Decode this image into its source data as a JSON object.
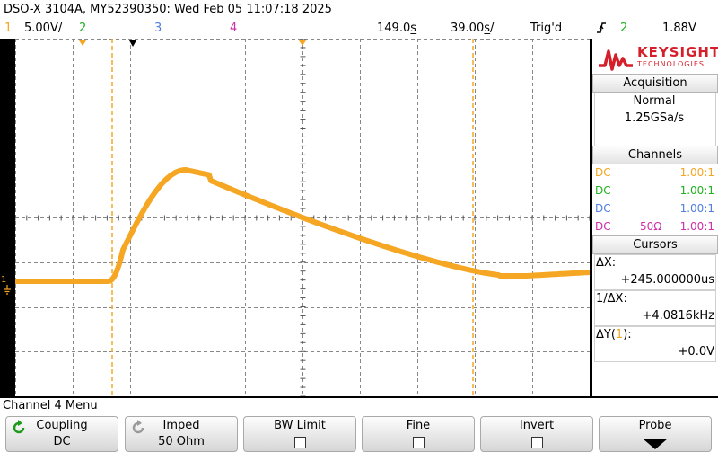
{
  "header": {
    "title": "DSO-X 3104A, MY52390350: Wed Feb 05 11:07:18 2025",
    "ch1_num": "1",
    "ch1_scale": "5.00V/",
    "ch2_num": "2",
    "ch3_num": "3",
    "ch4_num": "4",
    "time_pos": "149.0s̲",
    "time_scale": "39.00s̲/",
    "trig_state": "Trig'd",
    "trig_slope_icon": "rising-edge-icon",
    "trig_source": "2",
    "trig_level": "1.88V"
  },
  "colors": {
    "ch1": "#f5a623",
    "ch2": "#22b022",
    "ch3": "#4f7fe0",
    "ch4": "#cc2fa8",
    "brand": "#d51f2b"
  },
  "panel": {
    "brand_name": "KEYSIGHT",
    "brand_sub": "TECHNOLOGIES",
    "acquisition_title": "Acquisition",
    "acq_mode": "Normal",
    "acq_rate": "1.25GSa/s",
    "channels_title": "Channels",
    "channels": [
      {
        "coupling": "DC",
        "impedance": "",
        "probe": "1.00:1"
      },
      {
        "coupling": "DC",
        "impedance": "",
        "probe": "1.00:1"
      },
      {
        "coupling": "DC",
        "impedance": "",
        "probe": "1.00:1"
      },
      {
        "coupling": "DC",
        "impedance": "50Ω",
        "probe": "1.00:1"
      }
    ],
    "cursors_title": "Cursors",
    "dx_label": "ΔX:",
    "dx_value": "+245.000000us",
    "inv_dx_label": "1/ΔX:",
    "inv_dx_value": "+4.0816kHz",
    "dy_label_pre": "ΔY(",
    "dy_label_ch": "1",
    "dy_label_post": "):",
    "dy_value": "+0.0V"
  },
  "menu": {
    "title": "Channel 4 Menu",
    "keys": [
      {
        "label": "Coupling",
        "value": "DC"
      },
      {
        "label": "Imped",
        "value": "50 Ohm"
      },
      {
        "label": "BW Limit",
        "value": ""
      },
      {
        "label": "Fine",
        "value": ""
      },
      {
        "label": "Invert",
        "value": ""
      },
      {
        "label": "Probe",
        "value": ""
      }
    ]
  },
  "screen": {
    "ground_marker": "1",
    "trace_color": "#f5a623"
  }
}
